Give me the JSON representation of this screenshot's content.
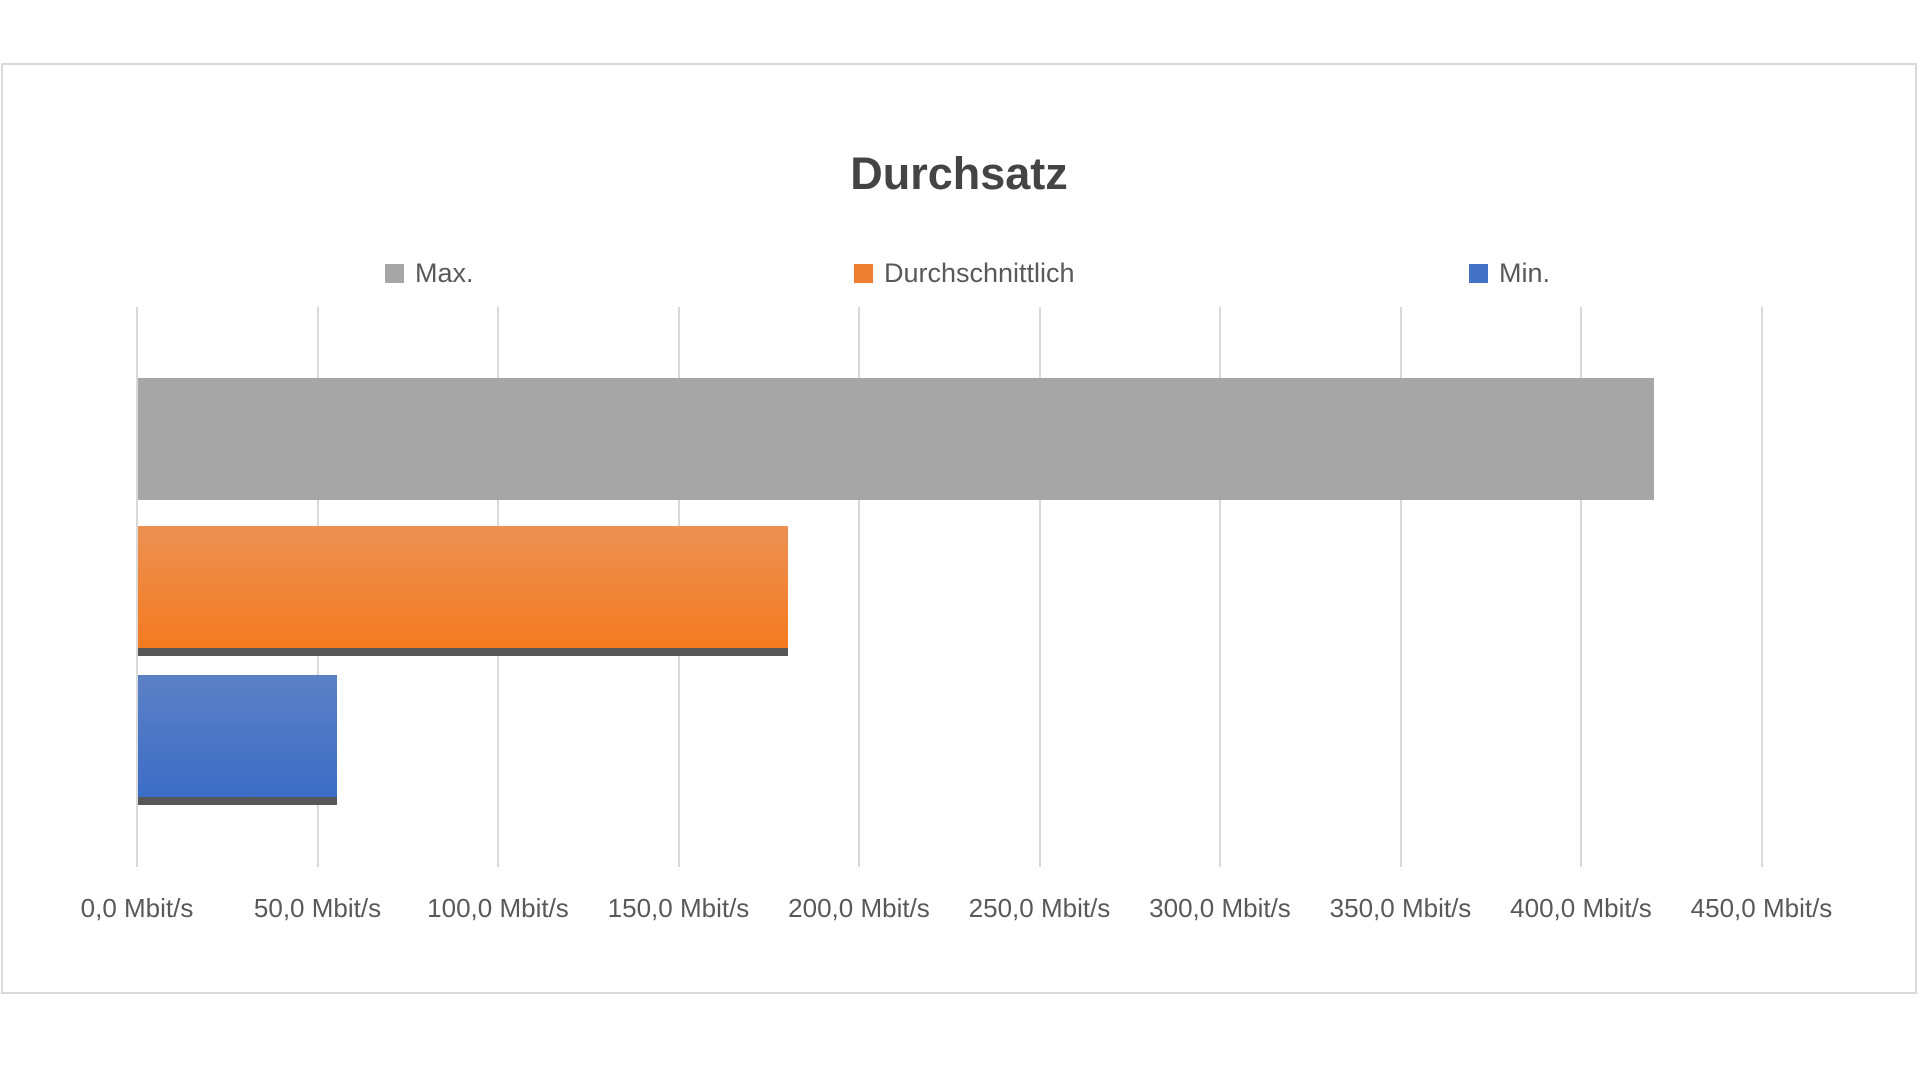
{
  "title": "Durchsatz",
  "chart_data": {
    "type": "bar",
    "orientation": "horizontal",
    "title": "Durchsatz",
    "unit": "Mbit/s",
    "xlim": [
      0,
      450
    ],
    "x_tick_step": 50,
    "grid": "vertical",
    "legend_position": "top",
    "series": [
      {
        "name": "Max.",
        "value": 420,
        "color": "#A6A6A6",
        "color2": "",
        "legend_color": "#A6A6A6"
      },
      {
        "name": "Durchschnittlich",
        "value": 180,
        "color": "#EC9153",
        "color2": "#F47A20",
        "legend_color": "#ED7D31"
      },
      {
        "name": "Min.",
        "value": 55,
        "color": "#5C80C6",
        "color2": "#3C6DC6",
        "legend_color": "#4472C4"
      }
    ],
    "x_tick_labels": [
      "0,0 Mbit/s",
      "50,0 Mbit/s",
      "100,0 Mbit/s",
      "150,0 Mbit/s",
      "200,0 Mbit/s",
      "250,0 Mbit/s",
      "300,0 Mbit/s",
      "350,0 Mbit/s",
      "400,0 Mbit/s",
      "450,0 Mbit/s"
    ]
  },
  "colors": {
    "border_and_grid": "#D9D9D9",
    "title_text": "#444444",
    "axis_text": "#595959",
    "legend_text": "#595959",
    "bar_shadow": "#575757"
  }
}
